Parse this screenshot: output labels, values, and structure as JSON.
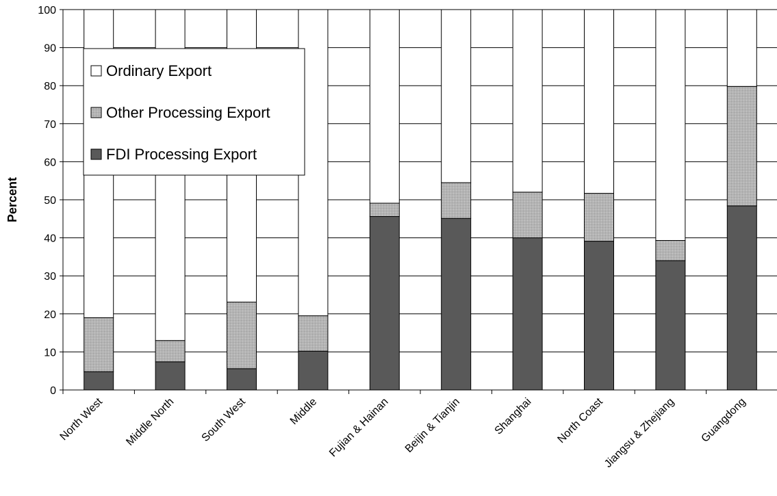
{
  "chart_data": {
    "type": "bar",
    "stacked": true,
    "title": "",
    "xlabel": "",
    "ylabel": "Percent",
    "ylim": [
      0,
      100
    ],
    "yticks": [
      "0",
      "10",
      "20",
      "30",
      "40",
      "50",
      "60",
      "70",
      "80",
      "90",
      "100"
    ],
    "grid": true,
    "legend_position": "top-left",
    "categories": [
      "North West",
      "Middle North",
      "South West",
      "Middle",
      "Fujian & Hainan",
      "Beijin & Tianjin",
      "Shanghai",
      "North Coast",
      "Jiangsu & Zhejiang",
      "Guangdong"
    ],
    "series": [
      {
        "name": "FDI Processing Export",
        "color": "#595959",
        "values": [
          4.8,
          7.4,
          5.6,
          10.2,
          45.6,
          45.1,
          40.0,
          39.1,
          34.0,
          48.4
        ]
      },
      {
        "name": "Other Processing Export",
        "color": "#b2b2b2",
        "values": [
          14.2,
          5.6,
          17.5,
          9.3,
          3.5,
          9.4,
          12.0,
          12.6,
          5.3,
          31.4
        ]
      },
      {
        "name": "Ordinary Export",
        "color": "#ffffff",
        "values": [
          81.0,
          87.0,
          76.9,
          80.5,
          50.9,
          45.5,
          48.0,
          48.3,
          60.7,
          20.2
        ]
      }
    ],
    "legend_order": [
      "Ordinary Export",
      "Other Processing Export",
      "FDI Processing Export"
    ]
  }
}
